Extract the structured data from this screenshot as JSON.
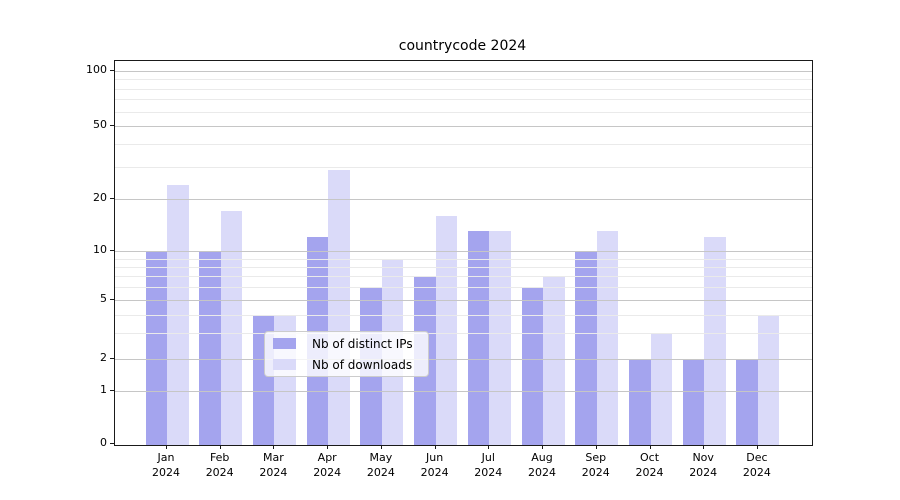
{
  "title": "countrycode 2024",
  "chart_data": {
    "type": "bar",
    "title": "countrycode 2024",
    "categories": [
      "Jan 2024",
      "Feb 2024",
      "Mar 2024",
      "Apr 2024",
      "May 2024",
      "Jun 2024",
      "Jul 2024",
      "Aug 2024",
      "Sep 2024",
      "Oct 2024",
      "Nov 2024",
      "Dec 2024"
    ],
    "series": [
      {
        "name": "Nb of distinct IPs",
        "color": "#a4a4ee",
        "values": [
          10,
          10,
          4,
          12,
          6,
          7,
          13,
          6,
          10,
          2,
          2,
          2
        ]
      },
      {
        "name": "Nb of downloads",
        "color": "#dadaf9",
        "values": [
          24,
          17,
          4,
          29,
          9,
          16,
          13,
          7,
          13,
          3,
          12,
          4
        ]
      }
    ],
    "xlabel": "",
    "ylabel": "",
    "yscale": "symlog",
    "ytick_labels": [
      "100",
      "50",
      "20",
      "10",
      "5",
      "2",
      "1",
      "0"
    ],
    "ytick_values": [
      100,
      50,
      20,
      10,
      5,
      2,
      1,
      0
    ],
    "ylim": [
      0,
      113
    ],
    "grid": true,
    "legend_position": "lower center"
  }
}
